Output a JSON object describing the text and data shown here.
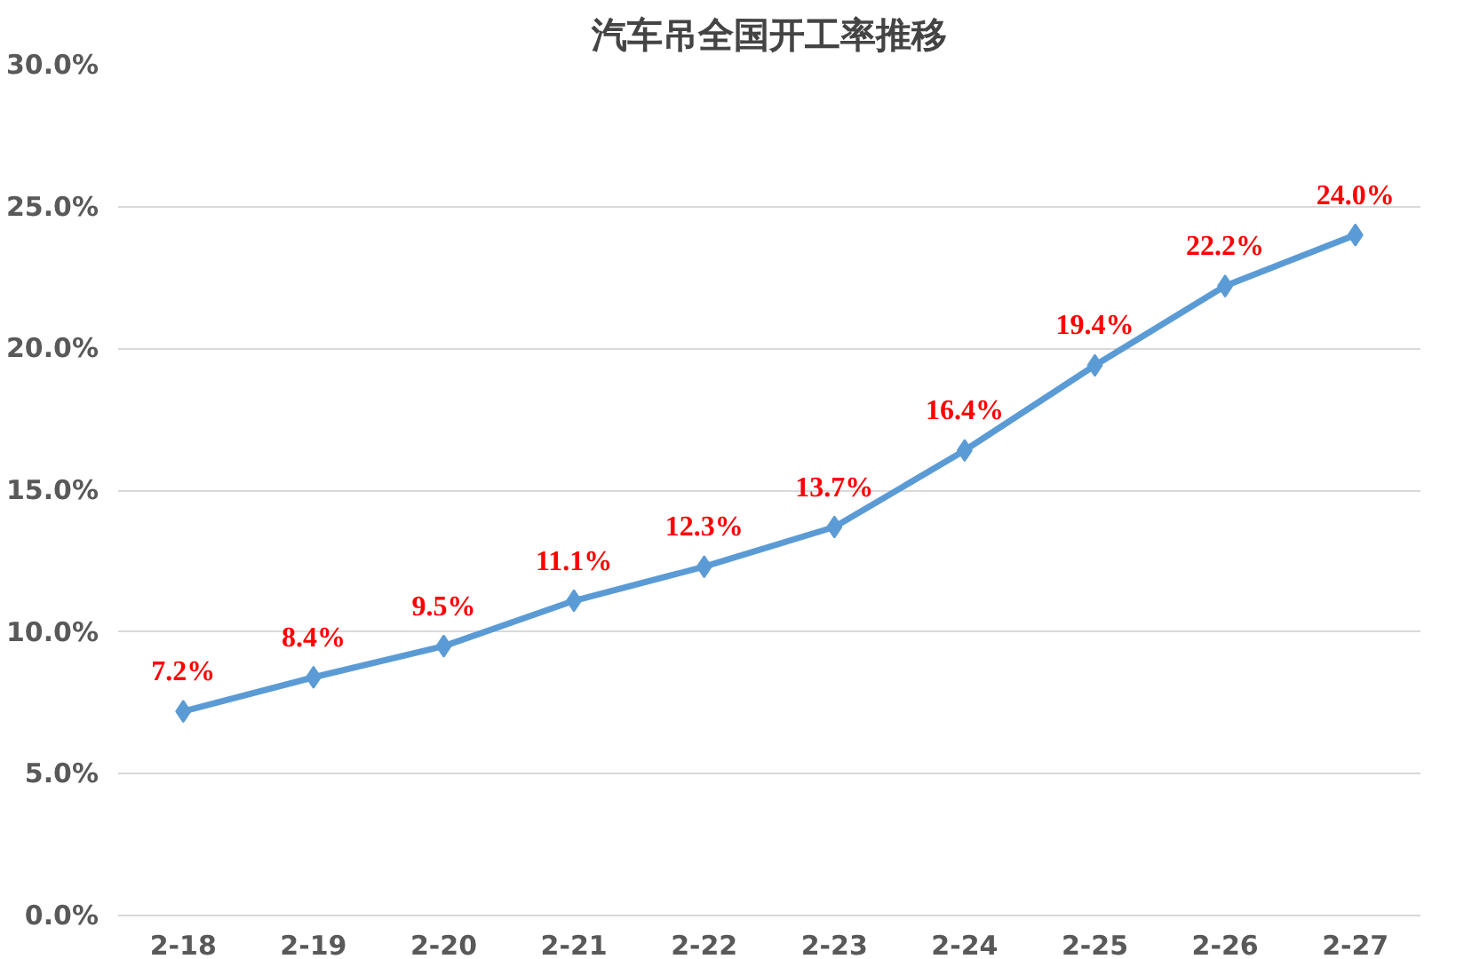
{
  "chart_data": {
    "type": "line",
    "title": "汽车吊全国开工率推移",
    "categories": [
      "2-18",
      "2-19",
      "2-20",
      "2-21",
      "2-22",
      "2-23",
      "2-24",
      "2-25",
      "2-26",
      "2-27"
    ],
    "values": [
      7.2,
      8.4,
      9.5,
      11.1,
      12.3,
      13.7,
      16.4,
      19.4,
      22.2,
      24.0
    ],
    "value_labels": [
      "7.2%",
      "8.4%",
      "9.5%",
      "11.1%",
      "12.3%",
      "13.7%",
      "16.4%",
      "19.4%",
      "22.2%",
      "24.0%"
    ],
    "color": "#5b9bd5",
    "marker": "diamond",
    "line_style": "solid",
    "grid": "y",
    "ylim": [
      0,
      30
    ],
    "yticks": [
      {
        "value": 0,
        "label": "0.0%"
      },
      {
        "value": 5,
        "label": "5.0%"
      },
      {
        "value": 10,
        "label": "10.0%"
      },
      {
        "value": 15,
        "label": "15.0%"
      },
      {
        "value": 20,
        "label": "20.0%"
      },
      {
        "value": 25,
        "label": "25.0%"
      },
      {
        "value": 30,
        "label": "30.0%"
      }
    ]
  }
}
